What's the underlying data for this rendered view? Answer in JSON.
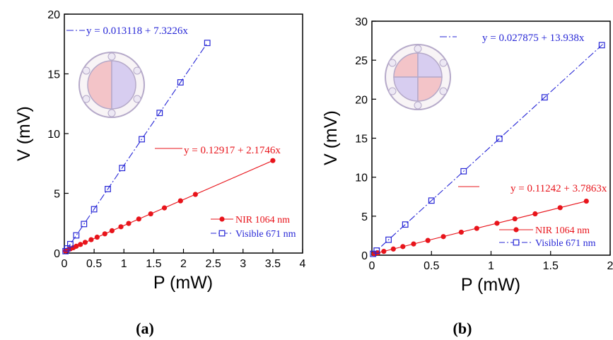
{
  "chart_data": [
    {
      "type": "line",
      "panel_label": "(a)",
      "xlabel": "P (mW)",
      "ylabel": "V (mV)",
      "xlim": [
        0,
        4
      ],
      "ylim": [
        0,
        20
      ],
      "xticks": [
        "0",
        "0.5",
        "1",
        "1.5",
        "2",
        "2.5",
        "3",
        "3.5",
        "4"
      ],
      "yticks": [
        "0",
        "5",
        "10",
        "15",
        "20"
      ],
      "grid": false,
      "legend_position": "bottom-right",
      "inset": "quadrant photodetector pattern (two halves)",
      "series": [
        {
          "name": "NIR 1064 nm",
          "color": "#e8141b",
          "marker": "filled-circle",
          "x": [
            0.02,
            0.06,
            0.1,
            0.15,
            0.2,
            0.27,
            0.35,
            0.45,
            0.55,
            0.68,
            0.8,
            0.95,
            1.08,
            1.25,
            1.45,
            1.68,
            1.95,
            2.2,
            3.5
          ],
          "y": [
            0.18,
            0.26,
            0.35,
            0.45,
            0.57,
            0.72,
            0.9,
            1.12,
            1.33,
            1.61,
            1.87,
            2.2,
            2.48,
            2.85,
            3.28,
            3.78,
            4.37,
            4.91,
            7.74
          ]
        },
        {
          "name": "Visible 671 nm",
          "color": "#2727d6",
          "marker": "open-square",
          "x": [
            0.02,
            0.05,
            0.1,
            0.2,
            0.33,
            0.5,
            0.73,
            0.97,
            1.3,
            1.6,
            1.95,
            2.4
          ],
          "y": [
            0.16,
            0.39,
            0.75,
            1.48,
            2.43,
            3.67,
            5.36,
            7.12,
            9.53,
            11.73,
            14.29,
            17.59
          ]
        }
      ],
      "fits": [
        {
          "color": "#e8141b",
          "text": "y = 0.12917 + 2.1746x",
          "x_range": [
            0,
            3.5
          ]
        },
        {
          "color": "#2727d6",
          "text": "y = 0.013118 + 7.3226x",
          "x_range": [
            0,
            2.4
          ]
        }
      ]
    },
    {
      "type": "line",
      "panel_label": "(b)",
      "xlabel": "P (mW)",
      "ylabel": "V (mV)",
      "xlim": [
        0,
        2
      ],
      "ylim": [
        0,
        30
      ],
      "xticks": [
        "0",
        "0.5",
        "1",
        "1.5",
        "2"
      ],
      "yticks": [
        "0",
        "5",
        "10",
        "15",
        "20",
        "25",
        "30"
      ],
      "grid": false,
      "legend_position": "bottom-right",
      "inset": "quadrant photodetector pattern (four quadrants)",
      "series": [
        {
          "name": "NIR 1064 nm",
          "color": "#e8141b",
          "marker": "filled-circle",
          "x": [
            0.02,
            0.05,
            0.1,
            0.18,
            0.26,
            0.35,
            0.47,
            0.6,
            0.75,
            0.88,
            1.05,
            1.2,
            1.37,
            1.58,
            1.8
          ],
          "y": [
            0.19,
            0.3,
            0.49,
            0.79,
            1.1,
            1.44,
            1.89,
            2.38,
            2.95,
            3.44,
            4.09,
            4.66,
            5.3,
            6.09,
            6.93
          ]
        },
        {
          "name": "Visible 671 nm",
          "color": "#2727d6",
          "marker": "open-square",
          "x": [
            0.01,
            0.04,
            0.14,
            0.28,
            0.5,
            0.77,
            1.07,
            1.45,
            1.93
          ],
          "y": [
            0.17,
            0.59,
            1.98,
            3.93,
            7.0,
            10.76,
            14.94,
            20.24,
            26.93
          ]
        }
      ],
      "fits": [
        {
          "color": "#e8141b",
          "text": "y = 0.11242 + 3.7863x",
          "x_range": [
            0,
            1.8
          ]
        },
        {
          "color": "#2727d6",
          "text": "y = 0.027875 + 13.938x",
          "x_range": [
            0,
            1.95
          ]
        }
      ]
    }
  ]
}
